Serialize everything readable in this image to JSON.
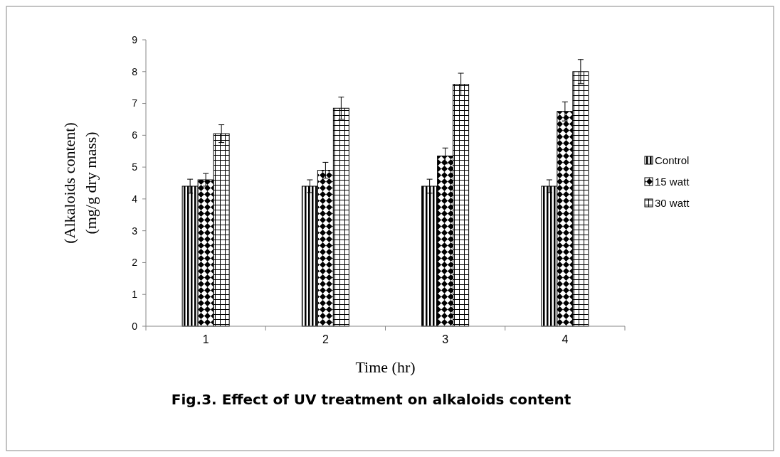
{
  "chart_data": {
    "type": "bar",
    "title": "Fig.3. Effect of UV treatment on alkaloids content",
    "xlabel": "Time (hr)",
    "ylabel": "(Alkaloids content)\n(mg/g dry mass)",
    "categories": [
      "1",
      "2",
      "3",
      "4"
    ],
    "series": [
      {
        "name": "Control",
        "color": "#000000",
        "values": [
          4.4,
          4.4,
          4.4,
          4.4
        ],
        "errors": [
          0.22,
          0.2,
          0.22,
          0.2
        ]
      },
      {
        "name": "15 watt",
        "color": "#000000",
        "values": [
          4.6,
          4.9,
          5.35,
          6.75
        ],
        "errors": [
          0.2,
          0.25,
          0.25,
          0.3
        ]
      },
      {
        "name": "30 watt",
        "color": "#000000",
        "values": [
          6.05,
          6.85,
          7.6,
          8.0
        ],
        "errors": [
          0.28,
          0.35,
          0.35,
          0.38
        ]
      }
    ],
    "ylim": [
      0,
      9
    ],
    "yticks": [
      0,
      1,
      2,
      3,
      4,
      5,
      6,
      7,
      8,
      9
    ],
    "legend": "right",
    "grid": false
  }
}
